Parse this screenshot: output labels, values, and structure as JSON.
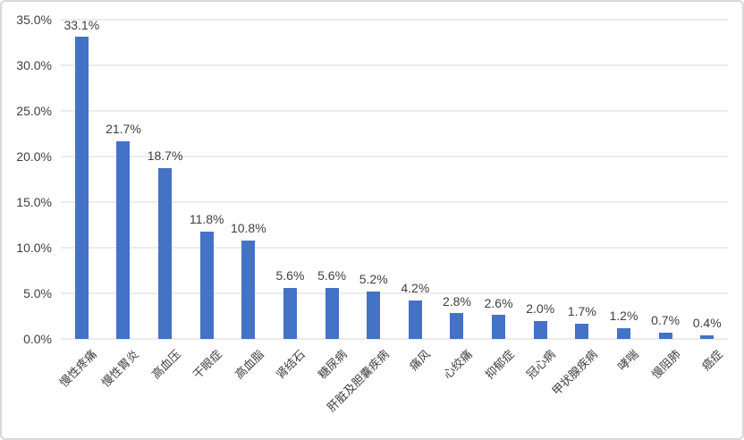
{
  "chart_data": {
    "type": "bar",
    "title": "",
    "xlabel": "",
    "ylabel": "",
    "categories": [
      "慢性疼痛",
      "慢性胃炎",
      "高血压",
      "干眼症",
      "高血脂",
      "肾结石",
      "糖尿病",
      "肝脏及胆囊疾病",
      "痛风",
      "心绞痛",
      "抑郁症",
      "冠心病",
      "甲状腺疾病",
      "哮喘",
      "慢阻肺",
      "癌症"
    ],
    "values": [
      33.1,
      21.7,
      18.7,
      11.8,
      10.8,
      5.6,
      5.6,
      5.2,
      4.2,
      2.8,
      2.6,
      2.0,
      1.7,
      1.2,
      0.7,
      0.4
    ],
    "value_labels": [
      "33.1%",
      "21.7%",
      "18.7%",
      "11.8%",
      "10.8%",
      "5.6%",
      "5.6%",
      "5.2%",
      "4.2%",
      "2.8%",
      "2.6%",
      "2.0%",
      "1.7%",
      "1.2%",
      "0.7%",
      "0.4%"
    ],
    "ylim": [
      0,
      35
    ],
    "y_tick_step": 5,
    "y_tick_labels": [
      "0.0%",
      "5.0%",
      "10.0%",
      "15.0%",
      "20.0%",
      "25.0%",
      "30.0%",
      "35.0%"
    ],
    "grid": true,
    "legend": "none",
    "category_label_rotation_deg": -45,
    "colors": {
      "bar": "#4472C4",
      "gridline": "#d9d9d9",
      "text": "#3f3f3f",
      "background": "#ffffff",
      "frame_border": "#d8d8d8"
    }
  }
}
